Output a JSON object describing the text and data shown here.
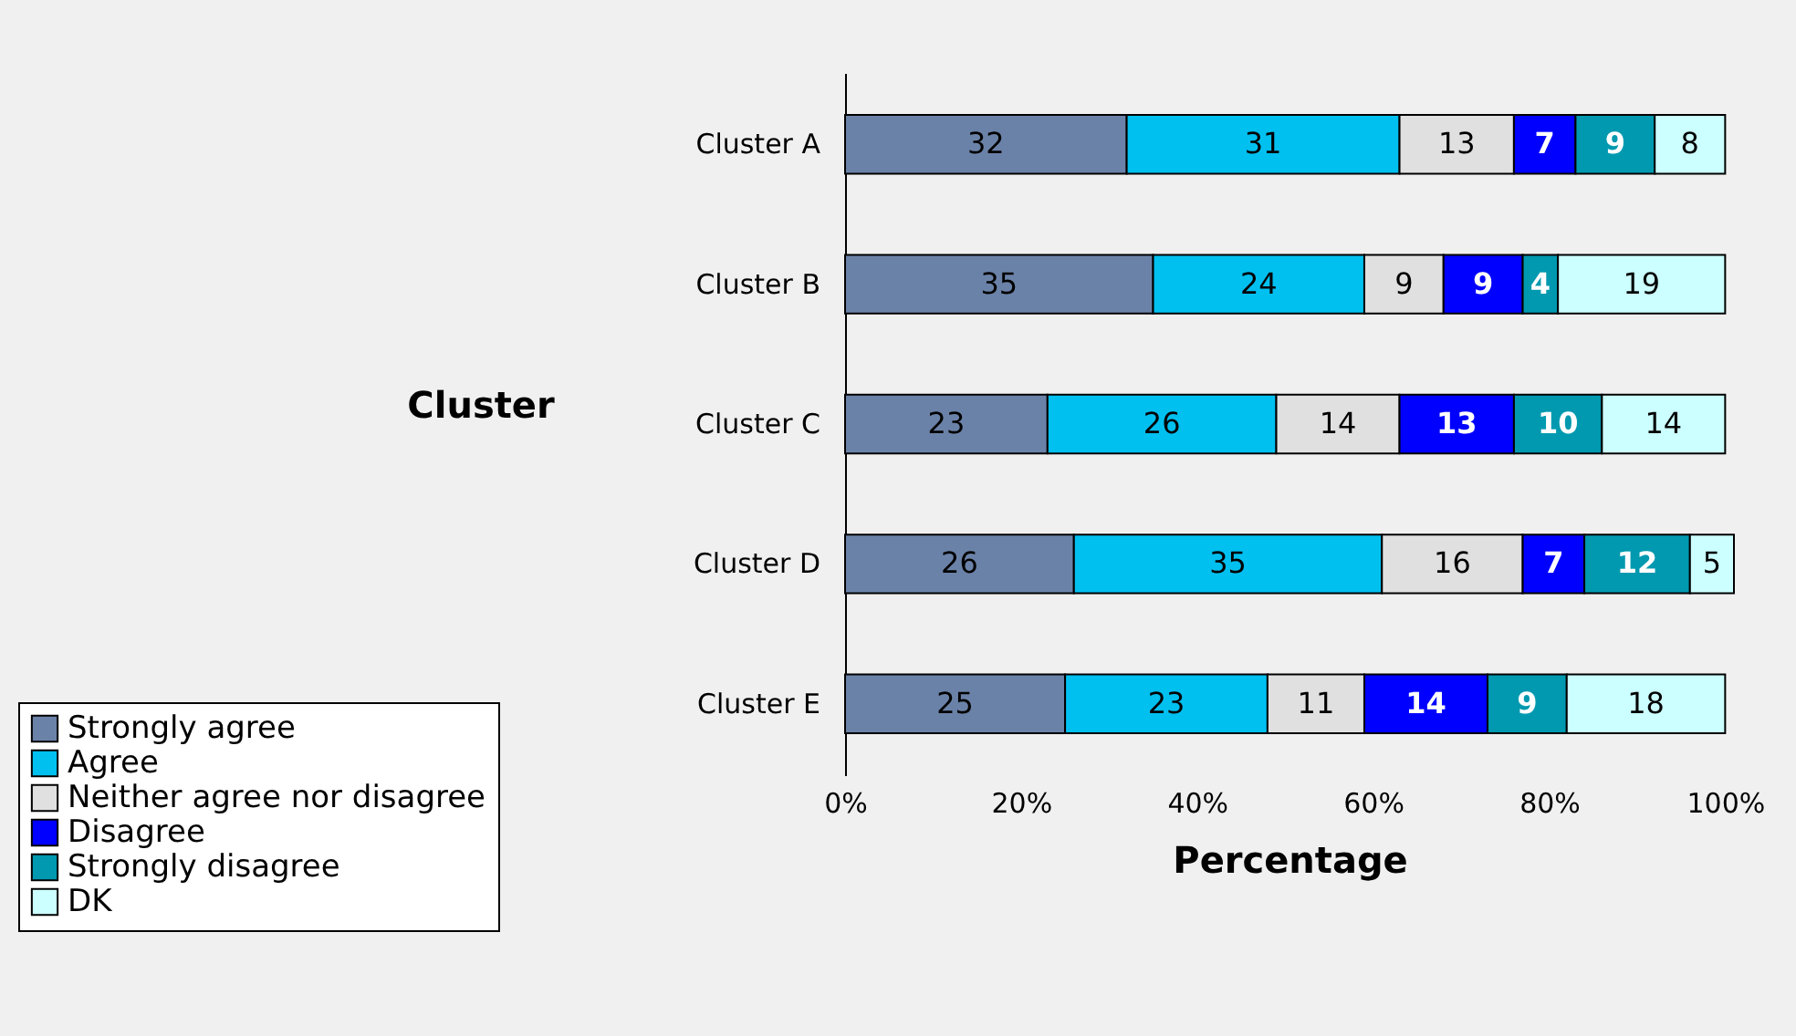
{
  "chart_data": {
    "type": "bar",
    "orientation": "horizontal",
    "stacked": true,
    "data_labels": true,
    "xlabel": "Percentage",
    "ylabel": "Cluster",
    "categories": [
      "Cluster A",
      "Cluster B",
      "Cluster C",
      "Cluster D",
      "Cluster E"
    ],
    "xlim": [
      0,
      101
    ],
    "xticks": [
      {
        "value": 0,
        "label": "0%"
      },
      {
        "value": 20,
        "label": "20%"
      },
      {
        "value": 40,
        "label": "40%"
      },
      {
        "value": 60,
        "label": "60%"
      },
      {
        "value": 80,
        "label": "80%"
      },
      {
        "value": 100,
        "label": "100%"
      }
    ],
    "grid": false,
    "legend": "bottom left",
    "series": [
      {
        "name": "Strongly agree",
        "color": "#6b82a8",
        "values": [
          32,
          35,
          23,
          26,
          25
        ]
      },
      {
        "name": "Agree",
        "color": "#00c0f0",
        "values": [
          31,
          24,
          26,
          35,
          23
        ]
      },
      {
        "name": "Neither agree nor disagree",
        "color": "#e0e0e0",
        "values": [
          13,
          9,
          14,
          16,
          11
        ]
      },
      {
        "name": "Disagree",
        "color": "#0000ff",
        "values": [
          7,
          9,
          13,
          7,
          14
        ]
      },
      {
        "name": "Strongly disagree",
        "color": "#0099b0",
        "values": [
          9,
          4,
          10,
          12,
          9
        ]
      },
      {
        "name": "DK",
        "color": "#ccffff",
        "values": [
          8,
          19,
          14,
          5,
          18
        ]
      }
    ]
  }
}
